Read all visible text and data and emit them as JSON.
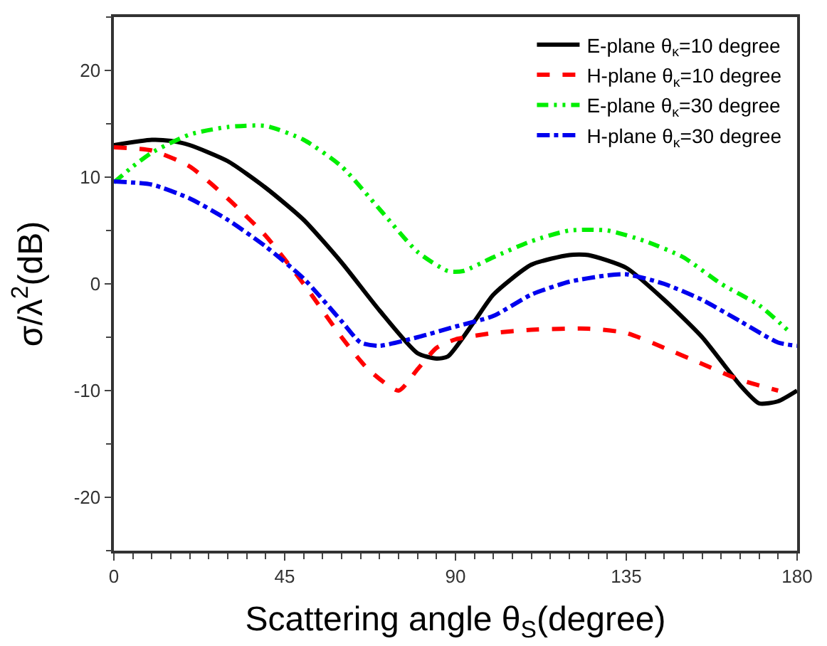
{
  "chart_data": {
    "type": "line",
    "xlabel": "Scattering angle θ$_{S}$(degree)",
    "ylabel": "σ/λ$^{2}$(dB)",
    "xlim": [
      0,
      180
    ],
    "xticks": [
      0,
      45,
      90,
      135,
      180
    ],
    "ylim": [
      -25,
      25
    ],
    "yticks": [
      -20,
      -10,
      0,
      10,
      20
    ],
    "legend": "top right",
    "marker": "none",
    "series": [
      {
        "name": "E-plane θ$_{κ}$=10 degree",
        "color": "#000000",
        "line_style": "solid",
        "x": [
          0,
          10,
          15,
          20,
          30,
          40,
          50,
          60,
          70,
          80,
          85,
          88,
          95,
          100,
          110,
          120,
          125,
          135,
          145,
          155,
          165,
          170,
          175,
          180
        ],
        "values": [
          13,
          13.5,
          13.4,
          13,
          11.5,
          9,
          6,
          2,
          -2.5,
          -6.5,
          -7,
          -6.8,
          -3.5,
          -1,
          1.8,
          2.7,
          2.7,
          1.5,
          -1.5,
          -5,
          -9.5,
          -11.2,
          -11,
          -10
        ]
      },
      {
        "name": "H-plane θ$_{κ}$=10 degree",
        "color": "#ff0000",
        "line_style": "dashed",
        "x": [
          0,
          10,
          20,
          30,
          40,
          50,
          60,
          67,
          75,
          80,
          85,
          90,
          100,
          110,
          125,
          135,
          145,
          155,
          165,
          175
        ],
        "values": [
          12.8,
          12.5,
          11,
          8,
          4.5,
          0,
          -5,
          -8,
          -10,
          -8,
          -6,
          -5.2,
          -4.6,
          -4.3,
          -4.2,
          -4.6,
          -6,
          -7.5,
          -9,
          -10
        ]
      },
      {
        "name": "E-plane θ$_{κ}$=30 degree",
        "color": "#00ee00",
        "line_style": "dashdotdot",
        "x": [
          0,
          5,
          10,
          20,
          30,
          40,
          50,
          60,
          70,
          80,
          88,
          92,
          100,
          110,
          120,
          130,
          140,
          150,
          160,
          170,
          178
        ],
        "values": [
          9.5,
          11,
          12.3,
          14,
          14.7,
          14.8,
          13.5,
          11,
          7,
          3,
          1.2,
          1.2,
          2.5,
          4,
          5,
          5,
          4,
          2.5,
          0,
          -2,
          -4.5
        ]
      },
      {
        "name": "H-plane θ$_{κ}$=30 degree",
        "color": "#0000ee",
        "line_style": "dashdot",
        "x": [
          0,
          10,
          20,
          30,
          40,
          50,
          60,
          65,
          70,
          80,
          90,
          100,
          110,
          120,
          130,
          135,
          145,
          155,
          165,
          175,
          180
        ],
        "values": [
          9.6,
          9.3,
          8,
          6,
          3.5,
          0.5,
          -3.5,
          -5.5,
          -5.8,
          -5,
          -4,
          -3,
          -1,
          0.2,
          0.8,
          0.9,
          0,
          -1.5,
          -3.5,
          -5.5,
          -5.8
        ]
      }
    ]
  }
}
